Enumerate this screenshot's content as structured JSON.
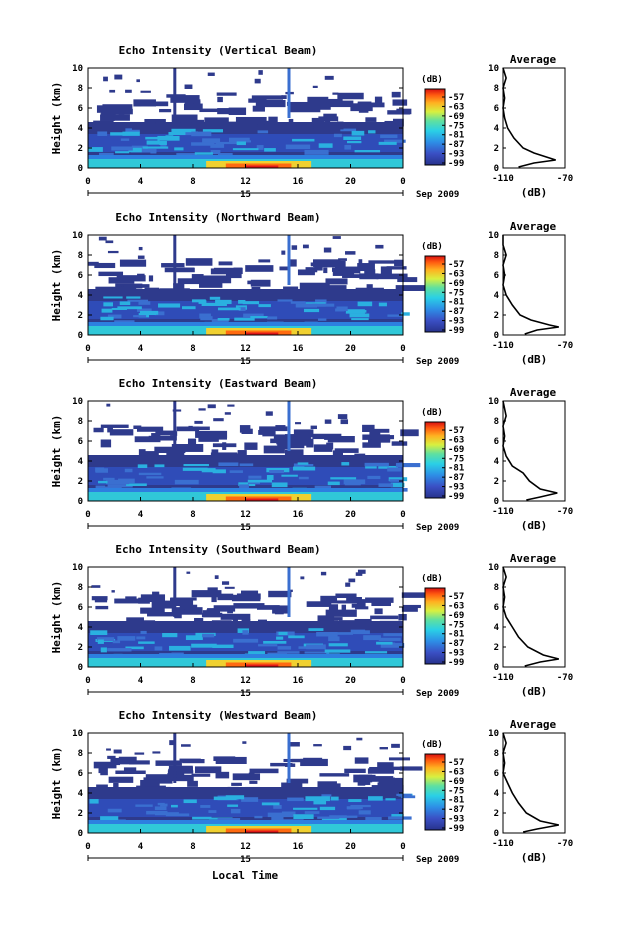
{
  "figure": {
    "x_label": "Local Time",
    "date_label": "Sep 2009",
    "colorbar_unit": "(dB)",
    "avg_title": "Average",
    "avg_unit": "(dB)",
    "y_label": "Height (km)"
  },
  "chart_data": [
    {
      "type": "heatmap",
      "title": "Echo Intensity (Vertical Beam)",
      "x_ticks": [
        "0",
        "4",
        "8",
        "12",
        "16",
        "20",
        "0"
      ],
      "x_day": "15",
      "y_ticks": [
        "0",
        "2",
        "4",
        "6",
        "8",
        "10"
      ],
      "ylim": [
        0,
        10
      ],
      "xlim": [
        0,
        24
      ],
      "colorbar_ticks": [
        "-57",
        "-63",
        "-69",
        "-75",
        "-81",
        "-87",
        "-93",
        "-99"
      ],
      "average": {
        "xlim": [
          -110,
          -70
        ],
        "x_ticks": [
          "-110",
          "-70"
        ],
        "y_ticks": [
          "0",
          "2",
          "4",
          "6",
          "8",
          "10"
        ],
        "profile": [
          [
            -100,
            0.1
          ],
          [
            -90,
            0.5
          ],
          [
            -76,
            0.8
          ],
          [
            -80,
            1.0
          ],
          [
            -90,
            1.5
          ],
          [
            -97,
            2.0
          ],
          [
            -103,
            3.0
          ],
          [
            -107,
            4.0
          ],
          [
            -109,
            5.0
          ],
          [
            -110,
            6.0
          ],
          [
            -109,
            7.0
          ],
          [
            -110,
            8.0
          ],
          [
            -108,
            9.0
          ],
          [
            -110,
            10.0
          ]
        ]
      }
    },
    {
      "type": "heatmap",
      "title": "Echo Intensity (Northward Beam)",
      "x_ticks": [
        "0",
        "4",
        "8",
        "12",
        "16",
        "20",
        "0"
      ],
      "x_day": "15",
      "y_ticks": [
        "0",
        "2",
        "4",
        "6",
        "8",
        "10"
      ],
      "ylim": [
        0,
        10
      ],
      "xlim": [
        0,
        24
      ],
      "colorbar_ticks": [
        "-57",
        "-63",
        "-69",
        "-75",
        "-81",
        "-87",
        "-93",
        "-99"
      ],
      "average": {
        "xlim": [
          -110,
          -70
        ],
        "x_ticks": [
          "-110",
          "-70"
        ],
        "y_ticks": [
          "0",
          "2",
          "4",
          "6",
          "8",
          "10"
        ],
        "profile": [
          [
            -96,
            0.1
          ],
          [
            -88,
            0.5
          ],
          [
            -74,
            0.8
          ],
          [
            -80,
            1.0
          ],
          [
            -92,
            1.5
          ],
          [
            -99,
            2.0
          ],
          [
            -104,
            3.0
          ],
          [
            -108,
            4.0
          ],
          [
            -110,
            5.0
          ],
          [
            -109,
            6.0
          ],
          [
            -110,
            7.0
          ],
          [
            -108,
            8.0
          ],
          [
            -110,
            9.0
          ],
          [
            -110,
            10.0
          ]
        ]
      }
    },
    {
      "type": "heatmap",
      "title": "Echo Intensity (Eastward Beam)",
      "x_ticks": [
        "0",
        "4",
        "8",
        "12",
        "16",
        "20",
        "0"
      ],
      "x_day": "15",
      "y_ticks": [
        "0",
        "2",
        "4",
        "6",
        "8",
        "10"
      ],
      "ylim": [
        0,
        10
      ],
      "xlim": [
        0,
        24
      ],
      "colorbar_ticks": [
        "-57",
        "-63",
        "-69",
        "-75",
        "-81",
        "-87",
        "-93",
        "-99"
      ],
      "average": {
        "xlim": [
          -110,
          -70
        ],
        "x_ticks": [
          "-110",
          "-70"
        ],
        "y_ticks": [
          "0",
          "2",
          "4",
          "6",
          "8",
          "10"
        ],
        "profile": [
          [
            -95,
            0.1
          ],
          [
            -86,
            0.4
          ],
          [
            -75,
            0.8
          ],
          [
            -86,
            1.2
          ],
          [
            -93,
            2.0
          ],
          [
            -97,
            2.8
          ],
          [
            -104,
            3.5
          ],
          [
            -108,
            4.5
          ],
          [
            -110,
            5.5
          ],
          [
            -109,
            6.5
          ],
          [
            -110,
            7.5
          ],
          [
            -108,
            8.5
          ],
          [
            -110,
            10.0
          ]
        ]
      }
    },
    {
      "type": "heatmap",
      "title": "Echo Intensity (Southward Beam)",
      "x_ticks": [
        "0",
        "4",
        "8",
        "12",
        "16",
        "20",
        "0"
      ],
      "x_day": "15",
      "y_ticks": [
        "0",
        "2",
        "4",
        "6",
        "8",
        "10"
      ],
      "ylim": [
        0,
        10
      ],
      "xlim": [
        0,
        24
      ],
      "colorbar_ticks": [
        "-57",
        "-63",
        "-69",
        "-75",
        "-81",
        "-87",
        "-93",
        "-99"
      ],
      "average": {
        "xlim": [
          -110,
          -70
        ],
        "x_ticks": [
          "-110",
          "-70"
        ],
        "y_ticks": [
          "0",
          "2",
          "4",
          "6",
          "8",
          "10"
        ],
        "profile": [
          [
            -96,
            0.1
          ],
          [
            -86,
            0.5
          ],
          [
            -74,
            0.8
          ],
          [
            -84,
            1.2
          ],
          [
            -94,
            2.0
          ],
          [
            -100,
            3.0
          ],
          [
            -104,
            4.0
          ],
          [
            -108,
            5.0
          ],
          [
            -110,
            6.0
          ],
          [
            -109,
            7.0
          ],
          [
            -110,
            8.0
          ],
          [
            -108,
            9.0
          ],
          [
            -110,
            10.0
          ]
        ]
      }
    },
    {
      "type": "heatmap",
      "title": "Echo Intensity (Westward Beam)",
      "x_ticks": [
        "0",
        "4",
        "8",
        "12",
        "16",
        "20",
        "0"
      ],
      "x_day": "15",
      "y_ticks": [
        "0",
        "2",
        "4",
        "6",
        "8",
        "10"
      ],
      "ylim": [
        0,
        10
      ],
      "xlim": [
        0,
        24
      ],
      "colorbar_ticks": [
        "-57",
        "-63",
        "-69",
        "-75",
        "-81",
        "-87",
        "-93",
        "-99"
      ],
      "average": {
        "xlim": [
          -110,
          -70
        ],
        "x_ticks": [
          "-110",
          "-70"
        ],
        "y_ticks": [
          "0",
          "2",
          "4",
          "6",
          "8",
          "10"
        ],
        "profile": [
          [
            -97,
            0.1
          ],
          [
            -88,
            0.4
          ],
          [
            -74,
            0.8
          ],
          [
            -86,
            1.2
          ],
          [
            -95,
            2.0
          ],
          [
            -100,
            3.0
          ],
          [
            -104,
            4.0
          ],
          [
            -107,
            5.0
          ],
          [
            -110,
            6.0
          ],
          [
            -109,
            7.0
          ],
          [
            -110,
            8.0
          ],
          [
            -108,
            9.0
          ],
          [
            -110,
            10.0
          ]
        ]
      }
    }
  ]
}
